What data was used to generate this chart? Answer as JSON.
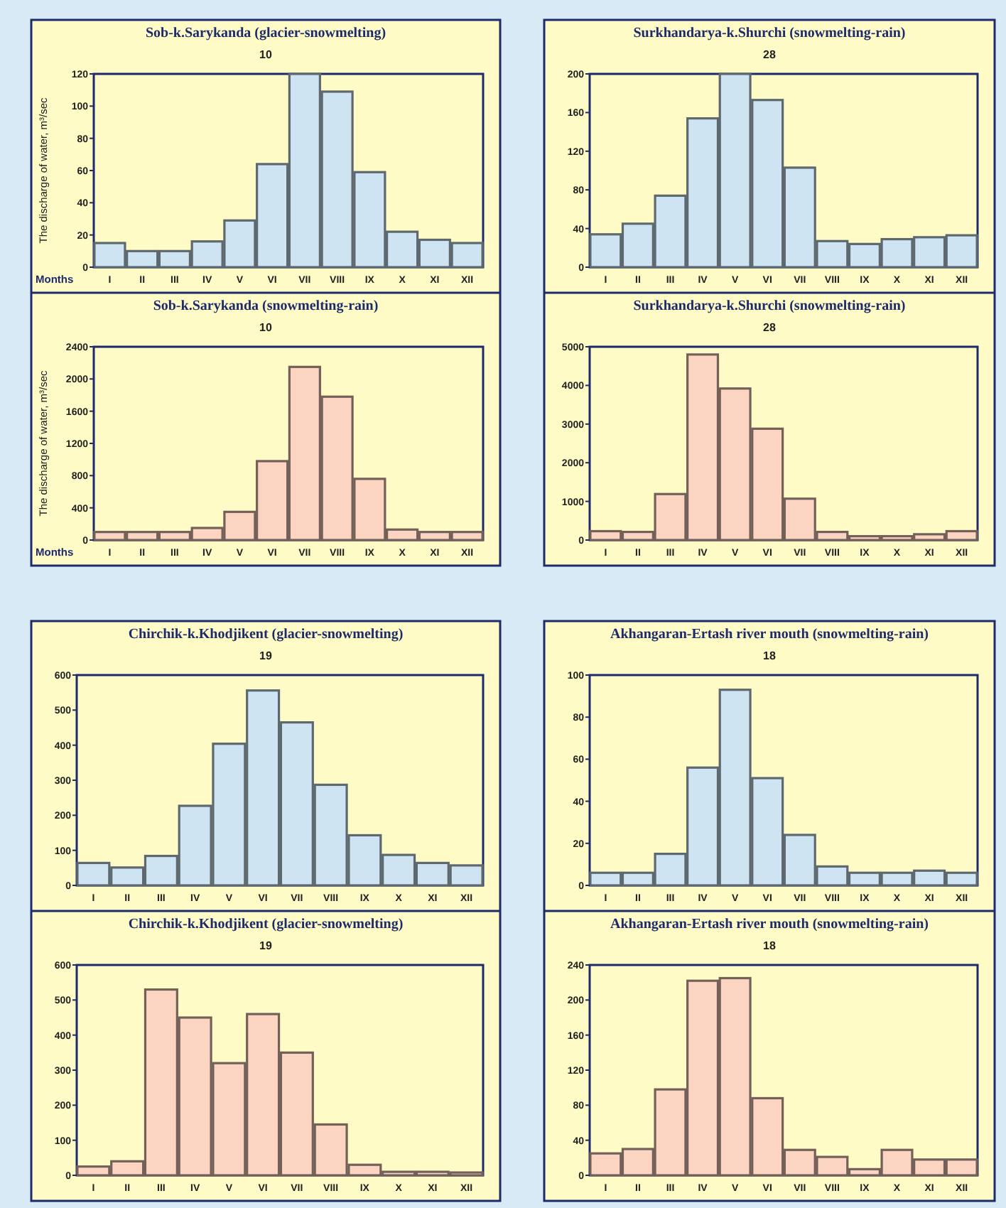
{
  "chart_data": [
    {
      "type": "bar",
      "title": "Sob-k.Sarykanda (glacier-snowmelting)",
      "subtitle": "10",
      "ylabel": "The discharge of water, m³/sec",
      "xlabel": "Months",
      "categories": [
        "I",
        "II",
        "III",
        "IV",
        "V",
        "VI",
        "VII",
        "VIII",
        "IX",
        "X",
        "XI",
        "XII"
      ],
      "values": [
        15,
        10,
        10,
        16,
        29,
        64,
        120,
        109,
        59,
        22,
        17,
        15
      ],
      "color": "#cfe4f3",
      "ylim": [
        0,
        120
      ],
      "yticks": [
        0,
        20,
        40,
        60,
        80,
        100,
        120
      ]
    },
    {
      "type": "bar",
      "title": "Sob-k.Sarykanda (snowmelting-rain)",
      "subtitle": "10",
      "ylabel": "The discharge of water, m³/sec",
      "xlabel": "Months",
      "categories": [
        "I",
        "II",
        "III",
        "IV",
        "V",
        "VI",
        "VII",
        "VIII",
        "IX",
        "X",
        "XI",
        "XII"
      ],
      "values": [
        100,
        100,
        100,
        150,
        350,
        980,
        2150,
        1780,
        760,
        130,
        100,
        100
      ],
      "color": "#fcd5c2",
      "ylim": [
        0,
        2400
      ],
      "yticks": [
        0,
        400,
        800,
        1200,
        1600,
        2000,
        2400
      ]
    },
    {
      "type": "bar",
      "title": "Surkhandarya-k.Shurchi (snowmelting-rain)",
      "subtitle": "28",
      "categories": [
        "I",
        "II",
        "III",
        "IV",
        "V",
        "VI",
        "VII",
        "VIII",
        "IX",
        "X",
        "XI",
        "XII"
      ],
      "values": [
        34,
        45,
        74,
        154,
        200,
        173,
        103,
        27,
        24,
        29,
        31,
        33
      ],
      "color": "#cfe4f3",
      "ylim": [
        0,
        200
      ],
      "yticks": [
        0,
        40,
        80,
        120,
        160,
        200
      ]
    },
    {
      "type": "bar",
      "title": "Surkhandarya-k.Shurchi (snowmelting-rain)",
      "subtitle": "28",
      "categories": [
        "I",
        "II",
        "III",
        "IV",
        "V",
        "VI",
        "VII",
        "VIII",
        "IX",
        "X",
        "XI",
        "XII"
      ],
      "values": [
        230,
        210,
        1190,
        4800,
        3920,
        2880,
        1070,
        210,
        100,
        100,
        150,
        230
      ],
      "color": "#fcd5c2",
      "ylim": [
        0,
        5000
      ],
      "yticks": [
        0,
        1000,
        2000,
        3000,
        4000,
        5000
      ]
    },
    {
      "type": "bar",
      "title": "Chirchik-k.Khodjikent (glacier-snowmelting)",
      "subtitle": "19",
      "categories": [
        "I",
        "II",
        "III",
        "IV",
        "V",
        "VI",
        "VII",
        "VIII",
        "IX",
        "X",
        "XI",
        "XII"
      ],
      "values": [
        64,
        51,
        84,
        227,
        404,
        556,
        465,
        287,
        143,
        87,
        64,
        57
      ],
      "color": "#cfe4f3",
      "ylim": [
        0,
        600
      ],
      "yticks": [
        0,
        100,
        200,
        300,
        400,
        500,
        600
      ]
    },
    {
      "type": "bar",
      "title": "Chirchik-k.Khodjikent (glacier-snowmelting)",
      "subtitle": "19",
      "categories": [
        "I",
        "II",
        "III",
        "IV",
        "V",
        "VI",
        "VII",
        "VIII",
        "IX",
        "X",
        "XI",
        "XII"
      ],
      "values": [
        25,
        40,
        530,
        450,
        320,
        460,
        350,
        145,
        30,
        10,
        10,
        8
      ],
      "color": "#fcd5c2",
      "ylim": [
        0,
        600
      ],
      "yticks": [
        0,
        100,
        200,
        300,
        400,
        500,
        600
      ]
    },
    {
      "type": "bar",
      "title": "Akhangaran-Ertash river mouth (snowmelting-rain)",
      "subtitle": "18",
      "categories": [
        "I",
        "II",
        "III",
        "IV",
        "V",
        "VI",
        "VII",
        "VIII",
        "IX",
        "X",
        "XI",
        "XII"
      ],
      "values": [
        6,
        6,
        15,
        56,
        93,
        51,
        24,
        9,
        6,
        6,
        7,
        6
      ],
      "color": "#cfe4f3",
      "ylim": [
        0,
        100
      ],
      "yticks": [
        0,
        20,
        40,
        60,
        80,
        100
      ]
    },
    {
      "type": "bar",
      "title": "Akhangaran-Ertash river mouth (snowmelting-rain)",
      "subtitle": "18",
      "categories": [
        "I",
        "II",
        "III",
        "IV",
        "V",
        "VI",
        "VII",
        "VIII",
        "IX",
        "X",
        "XI",
        "XII"
      ],
      "values": [
        25,
        30,
        98,
        222,
        225,
        88,
        29,
        21,
        7,
        29,
        18,
        18
      ],
      "color": "#fcd5c2",
      "ylim": [
        0,
        240
      ],
      "yticks": [
        0,
        40,
        80,
        120,
        160,
        200,
        240
      ]
    }
  ]
}
